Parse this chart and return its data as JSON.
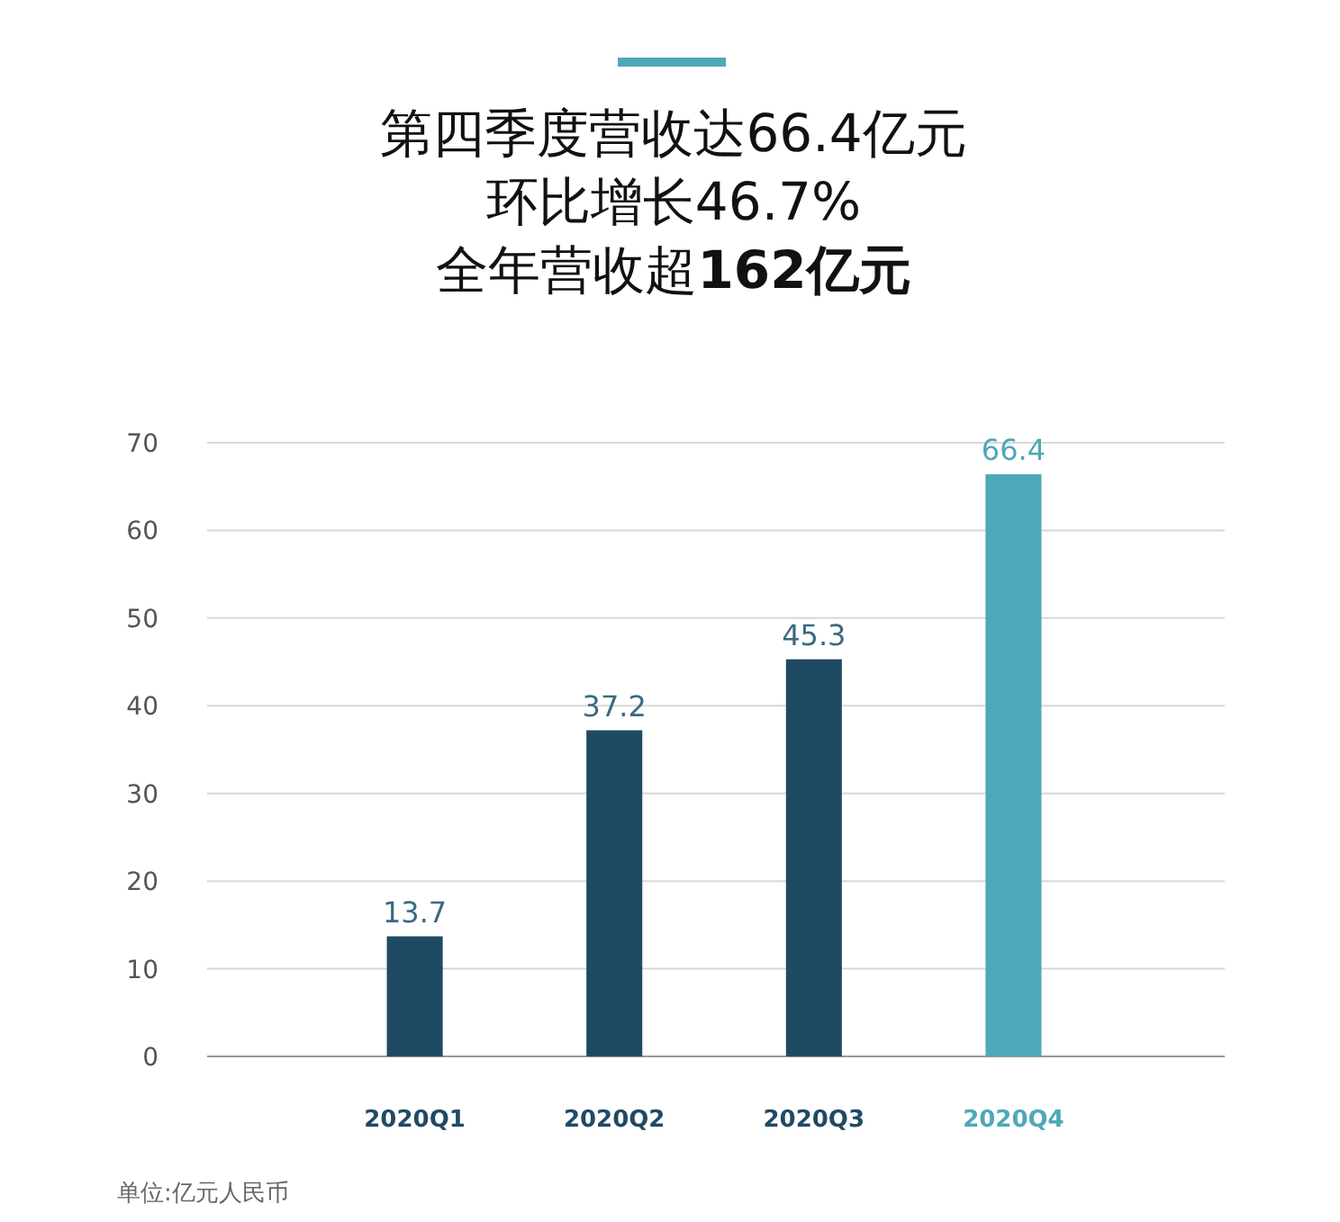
{
  "chart_data": {
    "type": "bar",
    "title": "第四季度营收达66.4亿元",
    "subtitle": "环比增长46.7%",
    "categories": [
      "2020Q1",
      "2020Q2",
      "2020Q3",
      "2020Q4"
    ],
    "values": [
      13.7,
      37.2,
      45.3,
      66.4
    ],
    "colors": [
      "#1f4a63",
      "#1f4a63",
      "#1f4a63",
      "#4da8b8"
    ],
    "ylim": [
      0,
      70
    ],
    "yticks": [
      0,
      10,
      20,
      30,
      40,
      50,
      60,
      70
    ],
    "grid": "y",
    "data_labels": true,
    "annotations": [
      "全年营收超162亿元",
      "单位:亿元人民币"
    ]
  }
}
